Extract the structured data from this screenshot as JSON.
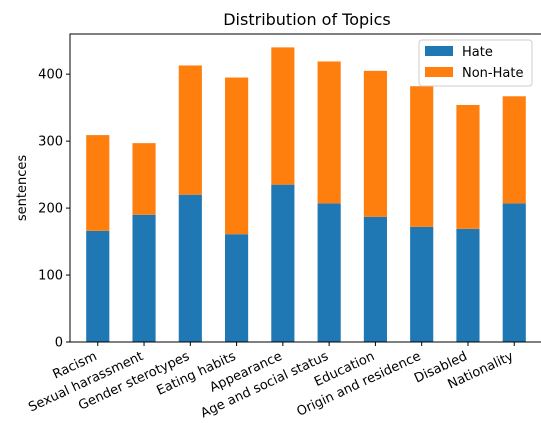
{
  "chart_data": {
    "type": "bar",
    "stacked": true,
    "title": "Distribution of Topics",
    "xlabel": "",
    "ylabel": "sentences",
    "categories": [
      "Racism",
      "Sexual harassment",
      "Gender sterotypes",
      "Eating habits",
      "Appearance",
      "Age and social status",
      "Education",
      "Origin and residence",
      "Disabled",
      "Nationality"
    ],
    "series": [
      {
        "name": "Hate",
        "color": "#1f77b4",
        "values": [
          166,
          190,
          220,
          161,
          235,
          207,
          187,
          172,
          169,
          207
        ]
      },
      {
        "name": "Non-Hate",
        "color": "#ff7f0e",
        "values": [
          143,
          107,
          193,
          234,
          205,
          212,
          218,
          210,
          185,
          160
        ]
      }
    ],
    "ylim": [
      0,
      460
    ],
    "yticks": [
      0,
      100,
      200,
      300,
      400
    ],
    "grid": false,
    "legend_position": "top-right"
  }
}
